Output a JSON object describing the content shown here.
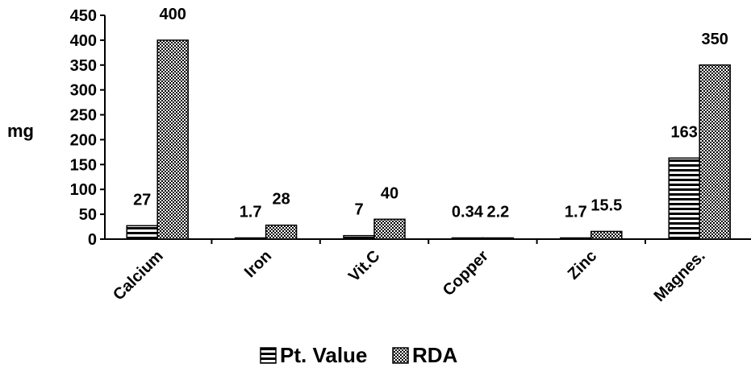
{
  "chart_data": {
    "type": "bar",
    "categories": [
      "Calcium",
      "Iron",
      "Vit.C",
      "Copper",
      "Zinc",
      "Magnes."
    ],
    "series": [
      {
        "name": "Pt. Value",
        "values": [
          27,
          1.7,
          7,
          0.34,
          1.7,
          163
        ],
        "labels": [
          "27",
          "1.7",
          "7",
          "0.34",
          "1.7",
          "163"
        ]
      },
      {
        "name": "RDA",
        "values": [
          400,
          28,
          40,
          2.2,
          15.5,
          350
        ],
        "labels": [
          "400",
          "28",
          "40",
          "2.2",
          "15.5",
          "350"
        ]
      }
    ],
    "ylabel": "mg",
    "xlabel": "",
    "ylim": [
      0,
      450
    ],
    "yticks": [
      "0",
      "50",
      "100",
      "150",
      "200",
      "250",
      "300",
      "350",
      "400",
      "450"
    ],
    "grid": false,
    "legend": "bottom"
  }
}
